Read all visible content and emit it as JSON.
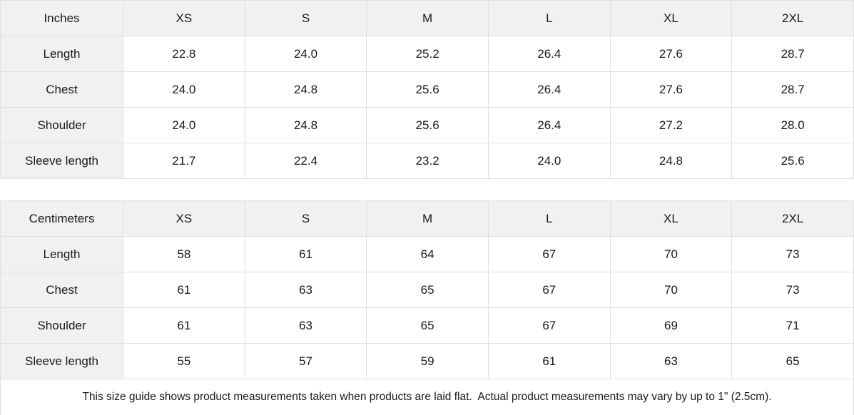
{
  "tables": [
    {
      "unit_label": "Inches",
      "sizes": [
        "XS",
        "S",
        "M",
        "L",
        "XL",
        "2XL"
      ],
      "rows": [
        {
          "label": "Length",
          "values": [
            "22.8",
            "24.0",
            "25.2",
            "26.4",
            "27.6",
            "28.7"
          ]
        },
        {
          "label": "Chest",
          "values": [
            "24.0",
            "24.8",
            "25.6",
            "26.4",
            "27.6",
            "28.7"
          ]
        },
        {
          "label": "Shoulder",
          "values": [
            "24.0",
            "24.8",
            "25.6",
            "26.4",
            "27.2",
            "28.0"
          ]
        },
        {
          "label": "Sleeve length",
          "values": [
            "21.7",
            "22.4",
            "23.2",
            "24.0",
            "24.8",
            "25.6"
          ]
        }
      ]
    },
    {
      "unit_label": "Centimeters",
      "sizes": [
        "XS",
        "S",
        "M",
        "L",
        "XL",
        "2XL"
      ],
      "rows": [
        {
          "label": "Length",
          "values": [
            "58",
            "61",
            "64",
            "67",
            "70",
            "73"
          ]
        },
        {
          "label": "Chest",
          "values": [
            "61",
            "63",
            "65",
            "67",
            "70",
            "73"
          ]
        },
        {
          "label": "Shoulder",
          "values": [
            "61",
            "63",
            "65",
            "67",
            "69",
            "71"
          ]
        },
        {
          "label": "Sleeve length",
          "values": [
            "55",
            "57",
            "59",
            "61",
            "63",
            "65"
          ]
        }
      ]
    }
  ],
  "footer_note": "This size guide shows product measurements taken when products are laid flat.  Actual product measurements may vary by up to 1\" (2.5cm).",
  "colors": {
    "header_bg": "#f1f1f1",
    "border": "#e0e0e0",
    "text": "#1a1a1a",
    "cell_bg": "#ffffff"
  }
}
